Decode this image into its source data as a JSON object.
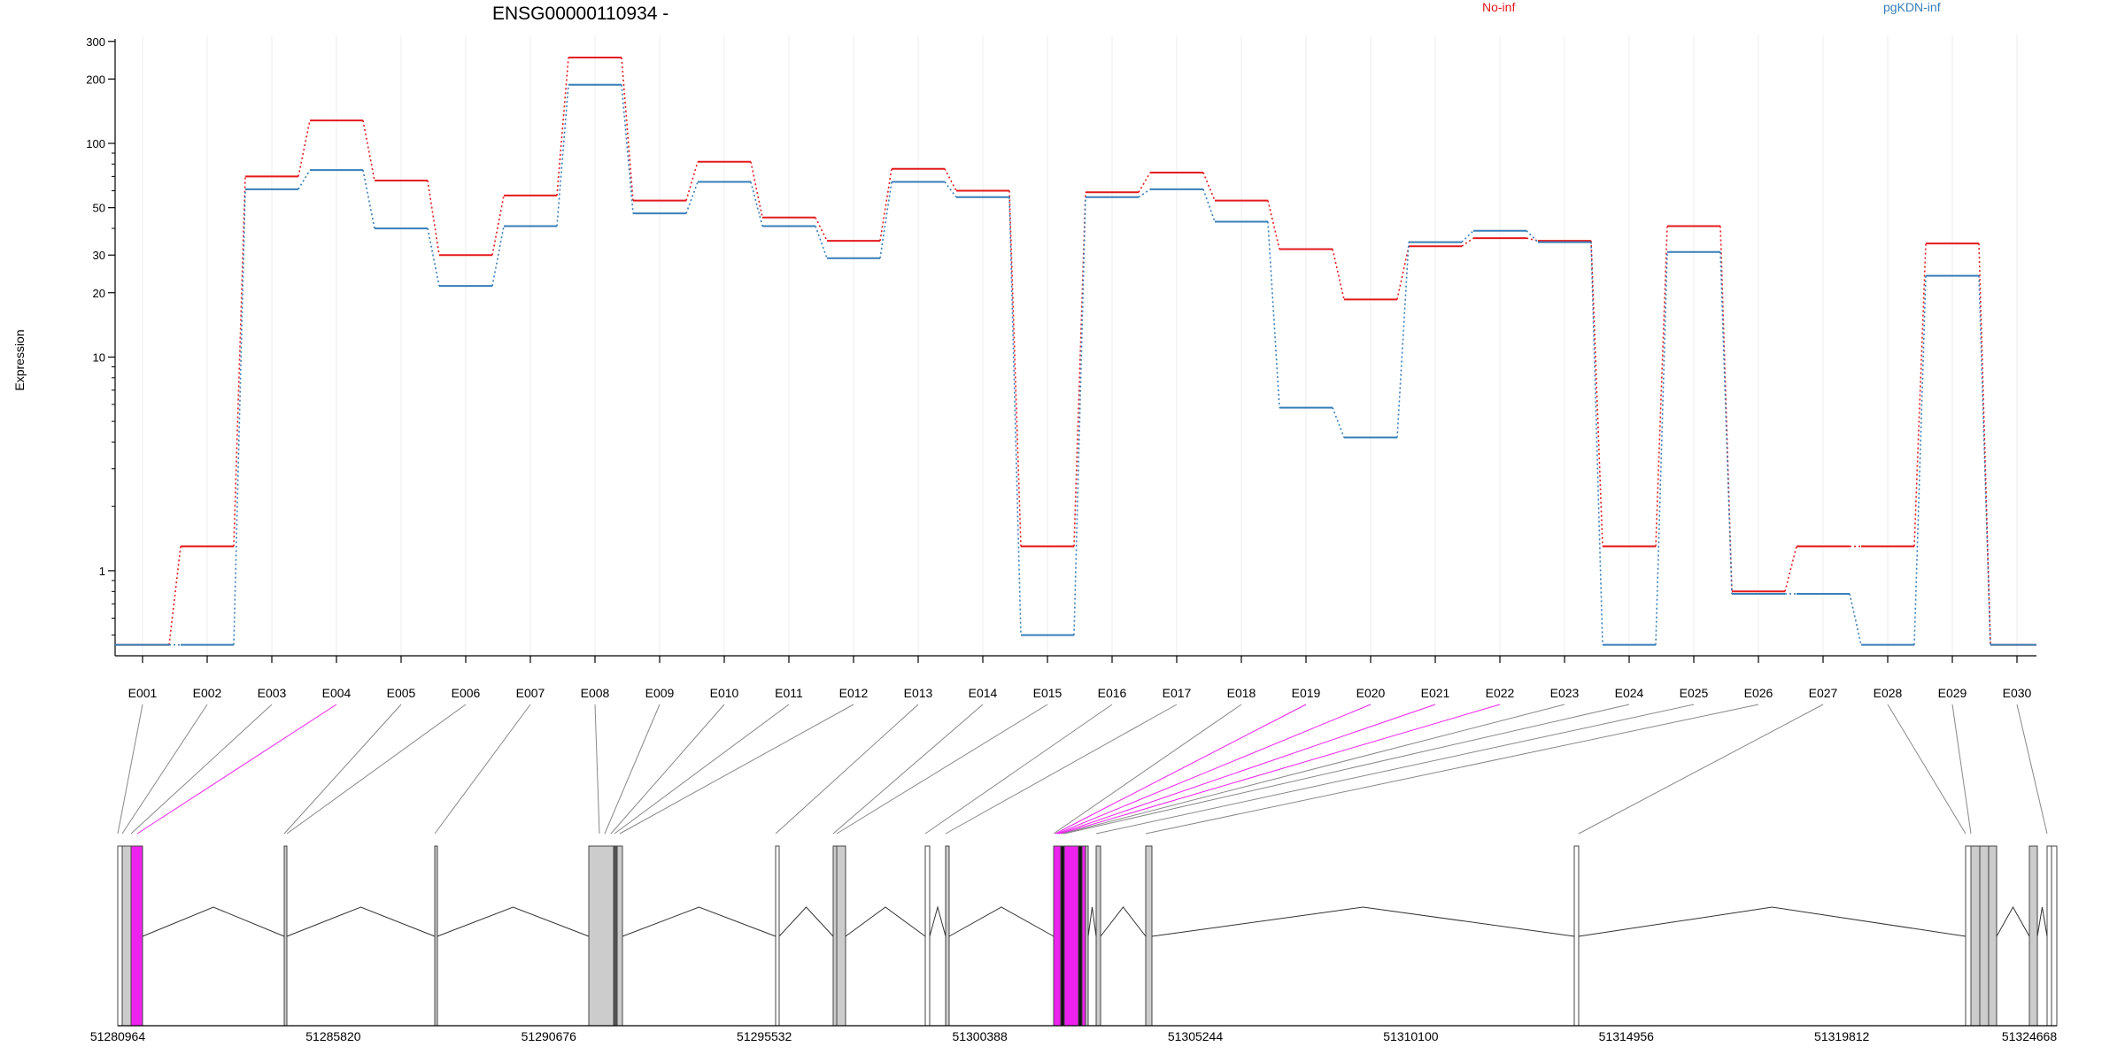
{
  "chart_data": {
    "type": "line",
    "title": "ENSG00000110934 -",
    "xlabel": "",
    "ylabel": "Expression",
    "y_scale": "log",
    "y_ticks": [
      1,
      10,
      20,
      30,
      50,
      100,
      200,
      300
    ],
    "y_tick_labels": [
      "1",
      "10",
      "20",
      "30",
      "50",
      "100",
      "200",
      "300"
    ],
    "ylim": [
      0.4,
      320
    ],
    "grid": "vertical lines at exon bins",
    "legend_placement": "top",
    "categories": [
      "E001",
      "E002",
      "E003",
      "E004",
      "E005",
      "E006",
      "E007",
      "E008",
      "E009",
      "E010",
      "E011",
      "E012",
      "E013",
      "E014",
      "E015",
      "E016",
      "E017",
      "E018",
      "E019",
      "E020",
      "E021",
      "E022",
      "E023",
      "E024",
      "E025",
      "E026",
      "E027",
      "E028",
      "E029",
      "E030"
    ],
    "series": [
      {
        "name": "No-inf",
        "color": "#e41a1c",
        "values": [
          0.45,
          1.3,
          70,
          128,
          67,
          30,
          57,
          252,
          54,
          82,
          45,
          35,
          76,
          60,
          1.3,
          59,
          73,
          54,
          32,
          18.6,
          33,
          36,
          35,
          1.3,
          41,
          0.8,
          1.3,
          1.3,
          34,
          0.45
        ]
      },
      {
        "name": "pgKDN-inf",
        "color": "#377eb8",
        "values": [
          0.45,
          0.45,
          61,
          75,
          40,
          21.5,
          41,
          188,
          47,
          66,
          41,
          29,
          66,
          56,
          0.5,
          56,
          61,
          43,
          5.8,
          4.2,
          34.5,
          39,
          34.5,
          0.45,
          31,
          0.78,
          0.78,
          0.45,
          24,
          0.45
        ]
      }
    ],
    "gene_model": {
      "coordinate_labels": [
        "51280964",
        "51285820",
        "51290676",
        "51295532",
        "51300388",
        "51305244",
        "51310100",
        "51314956",
        "51319812",
        "51324668"
      ],
      "highlight_color": "#ee22ee",
      "exon_fill": "#cccccc",
      "highlighted_exons": [
        "E004",
        "E019",
        "E020",
        "E021",
        "E022"
      ]
    }
  }
}
